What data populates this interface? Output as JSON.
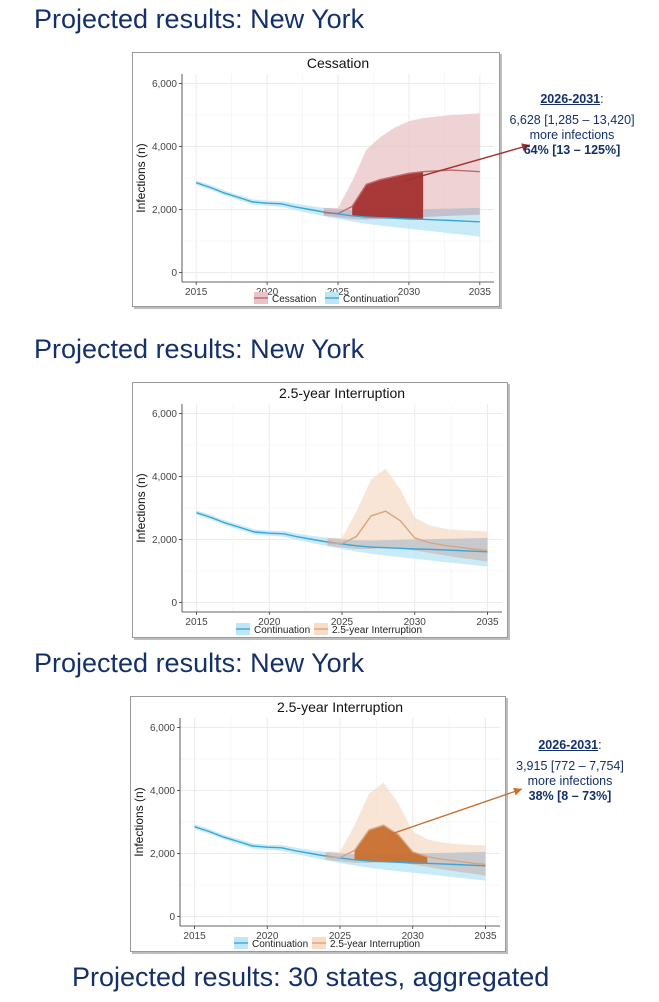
{
  "slides": [
    {
      "title": "Projected results: New York"
    },
    {
      "title": "Projected results: New York"
    },
    {
      "title": "Projected results: New York"
    },
    {
      "title": "Projected results: 30 states, aggregated"
    }
  ],
  "colors": {
    "title": "#14306b",
    "continuation_line": "#3aa6d4",
    "continuation_band": "#bfe6f6",
    "cessation_line": "#c0696b",
    "cessation_band": "#e9c3c6",
    "cessation_fill": "#a3302f",
    "interruption_line": "#d8a57f",
    "interruption_band": "#f7dcc7",
    "interruption_fill": "#c8702f",
    "overlap_band": "#a9b6c8"
  },
  "callouts": [
    {
      "period": "2026-2031",
      "colon": ":",
      "line1": "6,628 [1,285 – 13,420]",
      "line2": "more infections",
      "pct": "64% [13 – 125%]"
    },
    {
      "period": "2026-2031",
      "colon": ":",
      "line1": "3,915 [772 – 7,754]",
      "line2": "more infections",
      "pct": "38% [8 – 73%]"
    }
  ],
  "chart_data": [
    {
      "type": "line",
      "title": "Cessation",
      "xlabel": "",
      "ylabel": "Infections (n)",
      "xlim": [
        2014,
        2036
      ],
      "ylim": [
        -300,
        6300
      ],
      "x_ticks": [
        2015,
        2020,
        2025,
        2030,
        2035
      ],
      "y_ticks": [
        0,
        2000,
        4000,
        6000
      ],
      "y_tick_labels": [
        "0",
        "2,000",
        "4,000",
        "6,000"
      ],
      "grid": true,
      "legend_position": "bottom",
      "legend": [
        {
          "name": "Cessation",
          "color": "#c0696b",
          "band": "#e9c3c6"
        },
        {
          "name": "Continuation",
          "color": "#3aa6d4",
          "band": "#bfe6f6"
        }
      ],
      "series": [
        {
          "name": "Continuation",
          "color": "#3aa6d4",
          "band_color": "#bfe6f6",
          "x": [
            2015,
            2016,
            2017,
            2018,
            2019,
            2020,
            2021,
            2022,
            2023,
            2024,
            2025,
            2026,
            2027,
            2028,
            2029,
            2030,
            2031,
            2032,
            2033,
            2034,
            2035
          ],
          "y": [
            2850,
            2700,
            2520,
            2380,
            2240,
            2200,
            2180,
            2080,
            2000,
            1920,
            1860,
            1800,
            1760,
            1740,
            1720,
            1700,
            1690,
            1670,
            1650,
            1630,
            1610
          ],
          "lower": [
            2780,
            2630,
            2450,
            2300,
            2160,
            2120,
            2090,
            1980,
            1880,
            1790,
            1700,
            1620,
            1550,
            1490,
            1440,
            1390,
            1340,
            1290,
            1240,
            1190,
            1140
          ],
          "upper": [
            2920,
            2780,
            2600,
            2460,
            2320,
            2280,
            2270,
            2180,
            2110,
            2050,
            2010,
            1980,
            1970,
            1980,
            1990,
            2000,
            2010,
            2020,
            2030,
            2040,
            2050
          ]
        },
        {
          "name": "Cessation",
          "color": "#c0696b",
          "band_color": "#e9c3c6",
          "x": [
            2024,
            2025,
            2026,
            2027,
            2028,
            2029,
            2030,
            2031,
            2032,
            2033,
            2034,
            2035
          ],
          "y": [
            1900,
            1870,
            2100,
            2800,
            2950,
            3050,
            3150,
            3200,
            3230,
            3250,
            3230,
            3200
          ],
          "lower": [
            1800,
            1750,
            1700,
            1680,
            1700,
            1720,
            1740,
            1760,
            1780,
            1800,
            1820,
            1840
          ],
          "upper": [
            2050,
            2050,
            2900,
            3900,
            4300,
            4600,
            4800,
            4900,
            4950,
            5000,
            5020,
            5050
          ]
        }
      ],
      "highlight": {
        "series": "Cessation",
        "from": 2026,
        "to": 2031,
        "color": "#a3302f"
      }
    },
    {
      "type": "line",
      "title": "2.5-year Interruption",
      "xlabel": "",
      "ylabel": "Infections (n)",
      "xlim": [
        2014,
        2036
      ],
      "ylim": [
        -300,
        6300
      ],
      "x_ticks": [
        2015,
        2020,
        2025,
        2030,
        2035
      ],
      "y_ticks": [
        0,
        2000,
        4000,
        6000
      ],
      "y_tick_labels": [
        "0",
        "2,000",
        "4,000",
        "6,000"
      ],
      "grid": true,
      "legend_position": "bottom",
      "legend": [
        {
          "name": "Continuation",
          "color": "#3aa6d4",
          "band": "#bfe6f6"
        },
        {
          "name": "2.5-year Interruption",
          "color": "#d8a57f",
          "band": "#f7dcc7"
        }
      ],
      "series": [
        {
          "name": "Continuation",
          "color": "#3aa6d4",
          "band_color": "#bfe6f6",
          "x": [
            2015,
            2016,
            2017,
            2018,
            2019,
            2020,
            2021,
            2022,
            2023,
            2024,
            2025,
            2026,
            2027,
            2028,
            2029,
            2030,
            2031,
            2032,
            2033,
            2034,
            2035
          ],
          "y": [
            2850,
            2700,
            2520,
            2380,
            2240,
            2200,
            2180,
            2080,
            2000,
            1920,
            1860,
            1800,
            1760,
            1740,
            1720,
            1700,
            1690,
            1670,
            1650,
            1630,
            1610
          ],
          "lower": [
            2780,
            2630,
            2450,
            2300,
            2160,
            2120,
            2090,
            1980,
            1880,
            1790,
            1700,
            1620,
            1550,
            1490,
            1440,
            1390,
            1340,
            1290,
            1240,
            1190,
            1140
          ],
          "upper": [
            2920,
            2780,
            2600,
            2460,
            2320,
            2280,
            2270,
            2180,
            2110,
            2050,
            2010,
            1980,
            1970,
            1980,
            1990,
            2000,
            2010,
            2020,
            2030,
            2040,
            2050
          ]
        },
        {
          "name": "2.5-year Interruption",
          "color": "#d8a57f",
          "band_color": "#f7dcc7",
          "x": [
            2024,
            2025,
            2026,
            2027,
            2028,
            2029,
            2030,
            2031,
            2032,
            2033,
            2034,
            2035
          ],
          "y": [
            1900,
            1870,
            2100,
            2750,
            2900,
            2600,
            2050,
            1900,
            1820,
            1760,
            1700,
            1650
          ],
          "lower": [
            1800,
            1750,
            1700,
            1700,
            1750,
            1720,
            1650,
            1580,
            1500,
            1430,
            1370,
            1300
          ],
          "upper": [
            2050,
            2050,
            2900,
            3900,
            4250,
            3600,
            2700,
            2450,
            2350,
            2300,
            2280,
            2250
          ]
        }
      ]
    },
    {
      "type": "line",
      "title": "2.5-year Interruption",
      "xlabel": "",
      "ylabel": "Infections (n)",
      "xlim": [
        2014,
        2036
      ],
      "ylim": [
        -300,
        6300
      ],
      "x_ticks": [
        2015,
        2020,
        2025,
        2030,
        2035
      ],
      "y_ticks": [
        0,
        2000,
        4000,
        6000
      ],
      "y_tick_labels": [
        "0",
        "2,000",
        "4,000",
        "6,000"
      ],
      "grid": true,
      "legend_position": "bottom",
      "legend": [
        {
          "name": "Continuation",
          "color": "#3aa6d4",
          "band": "#bfe6f6"
        },
        {
          "name": "2.5-year Interruption",
          "color": "#d8a57f",
          "band": "#f7dcc7"
        }
      ],
      "series": [
        {
          "name": "Continuation",
          "color": "#3aa6d4",
          "band_color": "#bfe6f6",
          "x": [
            2015,
            2016,
            2017,
            2018,
            2019,
            2020,
            2021,
            2022,
            2023,
            2024,
            2025,
            2026,
            2027,
            2028,
            2029,
            2030,
            2031,
            2032,
            2033,
            2034,
            2035
          ],
          "y": [
            2850,
            2700,
            2520,
            2380,
            2240,
            2200,
            2180,
            2080,
            2000,
            1920,
            1860,
            1800,
            1760,
            1740,
            1720,
            1700,
            1690,
            1670,
            1650,
            1630,
            1610
          ],
          "lower": [
            2780,
            2630,
            2450,
            2300,
            2160,
            2120,
            2090,
            1980,
            1880,
            1790,
            1700,
            1620,
            1550,
            1490,
            1440,
            1390,
            1340,
            1290,
            1240,
            1190,
            1140
          ],
          "upper": [
            2920,
            2780,
            2600,
            2460,
            2320,
            2280,
            2270,
            2180,
            2110,
            2050,
            2010,
            1980,
            1970,
            1980,
            1990,
            2000,
            2010,
            2020,
            2030,
            2040,
            2050
          ]
        },
        {
          "name": "2.5-year Interruption",
          "color": "#d8a57f",
          "band_color": "#f7dcc7",
          "x": [
            2024,
            2025,
            2026,
            2027,
            2028,
            2029,
            2030,
            2031,
            2032,
            2033,
            2034,
            2035
          ],
          "y": [
            1900,
            1870,
            2100,
            2750,
            2900,
            2600,
            2050,
            1900,
            1820,
            1760,
            1700,
            1650
          ],
          "lower": [
            1800,
            1750,
            1700,
            1700,
            1750,
            1720,
            1650,
            1580,
            1500,
            1430,
            1370,
            1300
          ],
          "upper": [
            2050,
            2050,
            2900,
            3900,
            4250,
            3600,
            2700,
            2450,
            2350,
            2300,
            2280,
            2250
          ]
        }
      ],
      "highlight": {
        "series": "2.5-year Interruption",
        "from": 2026,
        "to": 2031,
        "color": "#c8702f"
      }
    }
  ]
}
